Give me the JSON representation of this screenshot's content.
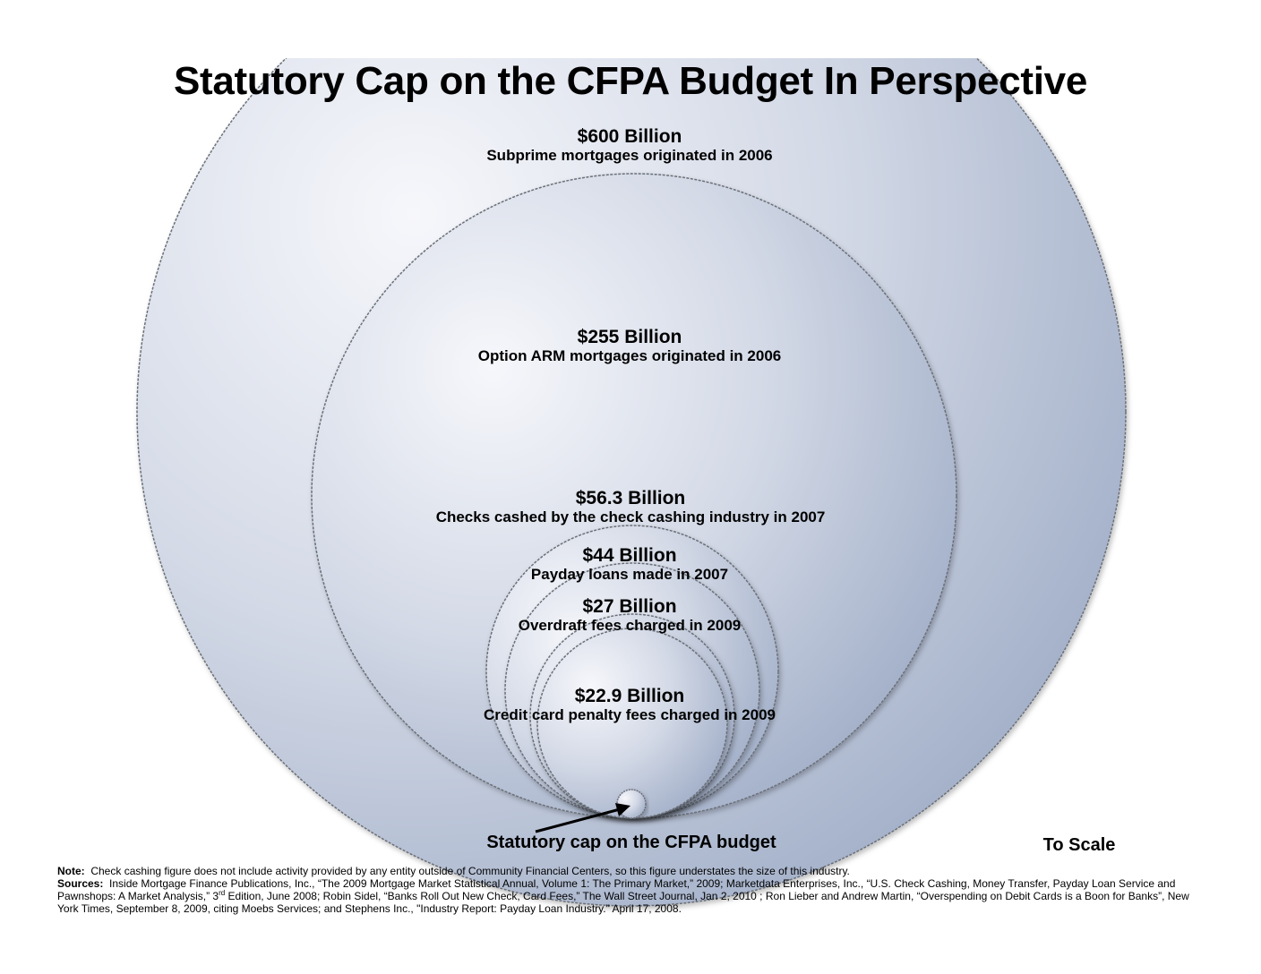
{
  "title": "Statutory Cap on the CFPA Budget In Perspective",
  "circles": [
    {
      "id": "subprime",
      "value": "$600 Billion",
      "description": "Subprime mortgages originated in 2006",
      "amount_billion": 600
    },
    {
      "id": "option-arm",
      "value": "$255 Billion",
      "description": "Option ARM mortgages originated in 2006",
      "amount_billion": 255
    },
    {
      "id": "checks-cashed",
      "value": "$56.3 Billion",
      "description": "Checks cashed by the check cashing industry in 2007",
      "amount_billion": 56.3
    },
    {
      "id": "payday-loans",
      "value": "$44 Billion",
      "description": "Payday loans made in 2007",
      "amount_billion": 44
    },
    {
      "id": "overdraft-fees",
      "value": "$27 Billion",
      "description": "Overdraft fees charged in 2009",
      "amount_billion": 27
    },
    {
      "id": "credit-card-fees",
      "value": "$22.9 Billion",
      "description": "Credit card penalty fees charged in 2009",
      "amount_billion": 22.9
    }
  ],
  "cap_label": "Statutory cap on the CFPA budget",
  "scale_label": "To Scale",
  "note_label": "Note:",
  "note_text": "Check cashing figure does not include activity provided by any entity outside of Community Financial Centers, so this figure understates the size of this industry.",
  "sources_label": "Sources:",
  "sources_text_1": "Inside Mortgage Finance Publications, Inc., “The 2009 Mortgage Market Statistical Annual, Volume 1: The Primary Market,” 2009; Marketdata Enterprises, Inc., “U.S. Check Cashing, Money Transfer, Payday Loan Service and Pawnshops:  A Market Analysis,” 3",
  "sources_sup": "rd",
  "sources_text_2": " Edition, June 2008; Robin Sidel, “Banks Roll Out New Check, Card Fees,” The Wall Street Journal, Jan 2, 2010 ; Ron Lieber and Andrew Martin, “Overspending on Debit Cards is a Boon for Banks”, New York Times, September 8, 2009, citing Moebs Services; and Stephens Inc., \"Industry Report: Payday Loan Industry.\" April 17, 2008.",
  "colors": {
    "circle_light": "#f6f7fb",
    "circle_mid": "#d3d9e6",
    "circle_dark": "#9eacc6",
    "outline": "#6a6f78"
  }
}
